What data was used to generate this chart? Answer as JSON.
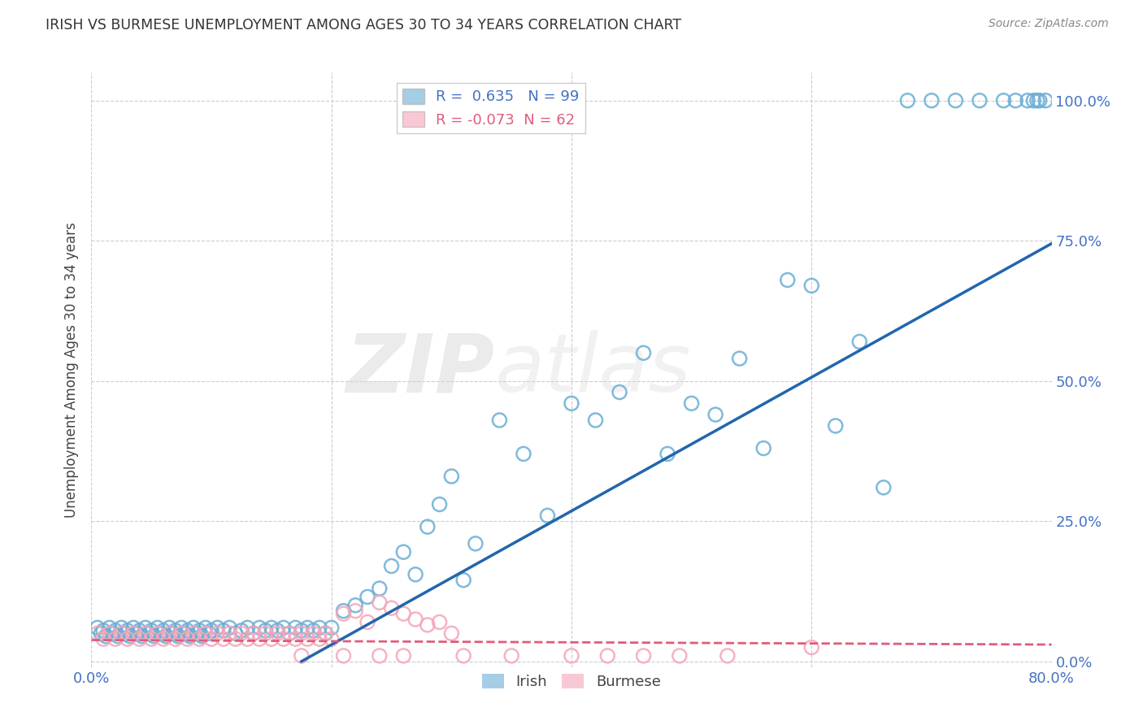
{
  "title": "IRISH VS BURMESE UNEMPLOYMENT AMONG AGES 30 TO 34 YEARS CORRELATION CHART",
  "source": "Source: ZipAtlas.com",
  "ylabel": "Unemployment Among Ages 30 to 34 years",
  "xlim": [
    0.0,
    0.8
  ],
  "ylim": [
    -0.01,
    1.05
  ],
  "yticks": [
    0.0,
    0.25,
    0.5,
    0.75,
    1.0
  ],
  "yticklabels_right": [
    "0.0%",
    "25.0%",
    "50.0%",
    "75.0%",
    "100.0%"
  ],
  "irish_R": 0.635,
  "irish_N": 99,
  "burmese_R": -0.073,
  "burmese_N": 62,
  "irish_color": "#6aaed6",
  "burmese_color": "#f4a6b8",
  "irish_line_color": "#2166ac",
  "burmese_line_color": "#e05c7a",
  "watermark": "ZIPatlas",
  "background_color": "#ffffff",
  "grid_color": "#cccccc",
  "title_color": "#333333",
  "axis_label_color": "#444444",
  "tick_label_color_blue": "#4472c4",
  "legend_label_color_blue": "#4472c4",
  "legend_label_color_pink": "#e05c7a",
  "irish_line_x0": 0.175,
  "irish_line_y0": 0.0,
  "irish_line_x1": 0.8,
  "irish_line_y1": 0.745,
  "burmese_line_x0": 0.0,
  "burmese_line_y0": 0.038,
  "burmese_line_x1": 0.8,
  "burmese_line_y1": 0.03,
  "irish_scatter_x": [
    0.005,
    0.008,
    0.01,
    0.012,
    0.015,
    0.018,
    0.02,
    0.022,
    0.025,
    0.028,
    0.03,
    0.032,
    0.035,
    0.038,
    0.04,
    0.042,
    0.045,
    0.048,
    0.05,
    0.052,
    0.055,
    0.058,
    0.06,
    0.062,
    0.065,
    0.068,
    0.07,
    0.072,
    0.075,
    0.078,
    0.08,
    0.082,
    0.085,
    0.088,
    0.09,
    0.092,
    0.095,
    0.098,
    0.1,
    0.105,
    0.11,
    0.115,
    0.12,
    0.125,
    0.13,
    0.135,
    0.14,
    0.145,
    0.15,
    0.155,
    0.16,
    0.165,
    0.17,
    0.175,
    0.18,
    0.185,
    0.19,
    0.195,
    0.2,
    0.21,
    0.22,
    0.23,
    0.24,
    0.25,
    0.26,
    0.27,
    0.28,
    0.29,
    0.3,
    0.31,
    0.32,
    0.34,
    0.36,
    0.38,
    0.4,
    0.42,
    0.44,
    0.46,
    0.48,
    0.5,
    0.52,
    0.54,
    0.56,
    0.58,
    0.6,
    0.62,
    0.64,
    0.66,
    0.68,
    0.7,
    0.72,
    0.74,
    0.76,
    0.77,
    0.78,
    0.785,
    0.788,
    0.79,
    0.795
  ],
  "irish_scatter_y": [
    0.06,
    0.05,
    0.055,
    0.045,
    0.06,
    0.05,
    0.055,
    0.045,
    0.06,
    0.05,
    0.055,
    0.045,
    0.06,
    0.05,
    0.055,
    0.045,
    0.06,
    0.05,
    0.055,
    0.045,
    0.06,
    0.05,
    0.055,
    0.045,
    0.06,
    0.05,
    0.055,
    0.045,
    0.06,
    0.05,
    0.055,
    0.045,
    0.06,
    0.05,
    0.055,
    0.045,
    0.06,
    0.05,
    0.055,
    0.06,
    0.055,
    0.06,
    0.05,
    0.055,
    0.06,
    0.05,
    0.06,
    0.055,
    0.06,
    0.055,
    0.06,
    0.05,
    0.06,
    0.055,
    0.06,
    0.055,
    0.06,
    0.05,
    0.06,
    0.09,
    0.1,
    0.115,
    0.13,
    0.17,
    0.195,
    0.155,
    0.24,
    0.28,
    0.33,
    0.145,
    0.21,
    0.43,
    0.37,
    0.26,
    0.46,
    0.43,
    0.48,
    0.55,
    0.37,
    0.46,
    0.44,
    0.54,
    0.38,
    0.68,
    0.67,
    0.42,
    0.57,
    0.31,
    1.0,
    1.0,
    1.0,
    1.0,
    1.0,
    1.0,
    1.0,
    1.0,
    1.0,
    1.0,
    1.0
  ],
  "burmese_scatter_x": [
    0.005,
    0.01,
    0.015,
    0.02,
    0.025,
    0.03,
    0.035,
    0.04,
    0.045,
    0.05,
    0.055,
    0.06,
    0.065,
    0.07,
    0.075,
    0.08,
    0.085,
    0.09,
    0.095,
    0.1,
    0.105,
    0.11,
    0.115,
    0.12,
    0.125,
    0.13,
    0.135,
    0.14,
    0.145,
    0.15,
    0.155,
    0.16,
    0.165,
    0.17,
    0.175,
    0.18,
    0.185,
    0.19,
    0.195,
    0.2,
    0.21,
    0.22,
    0.23,
    0.24,
    0.25,
    0.26,
    0.27,
    0.28,
    0.29,
    0.3,
    0.175,
    0.21,
    0.24,
    0.26,
    0.31,
    0.35,
    0.4,
    0.43,
    0.46,
    0.49,
    0.53,
    0.6
  ],
  "burmese_scatter_y": [
    0.05,
    0.04,
    0.05,
    0.04,
    0.05,
    0.04,
    0.05,
    0.04,
    0.05,
    0.04,
    0.05,
    0.04,
    0.05,
    0.04,
    0.05,
    0.04,
    0.05,
    0.04,
    0.05,
    0.04,
    0.05,
    0.04,
    0.05,
    0.04,
    0.05,
    0.04,
    0.05,
    0.04,
    0.05,
    0.04,
    0.05,
    0.04,
    0.05,
    0.04,
    0.05,
    0.04,
    0.05,
    0.04,
    0.05,
    0.04,
    0.085,
    0.09,
    0.07,
    0.105,
    0.095,
    0.085,
    0.075,
    0.065,
    0.07,
    0.05,
    0.01,
    0.01,
    0.01,
    0.01,
    0.01,
    0.01,
    0.01,
    0.01,
    0.01,
    0.01,
    0.01,
    0.025
  ]
}
